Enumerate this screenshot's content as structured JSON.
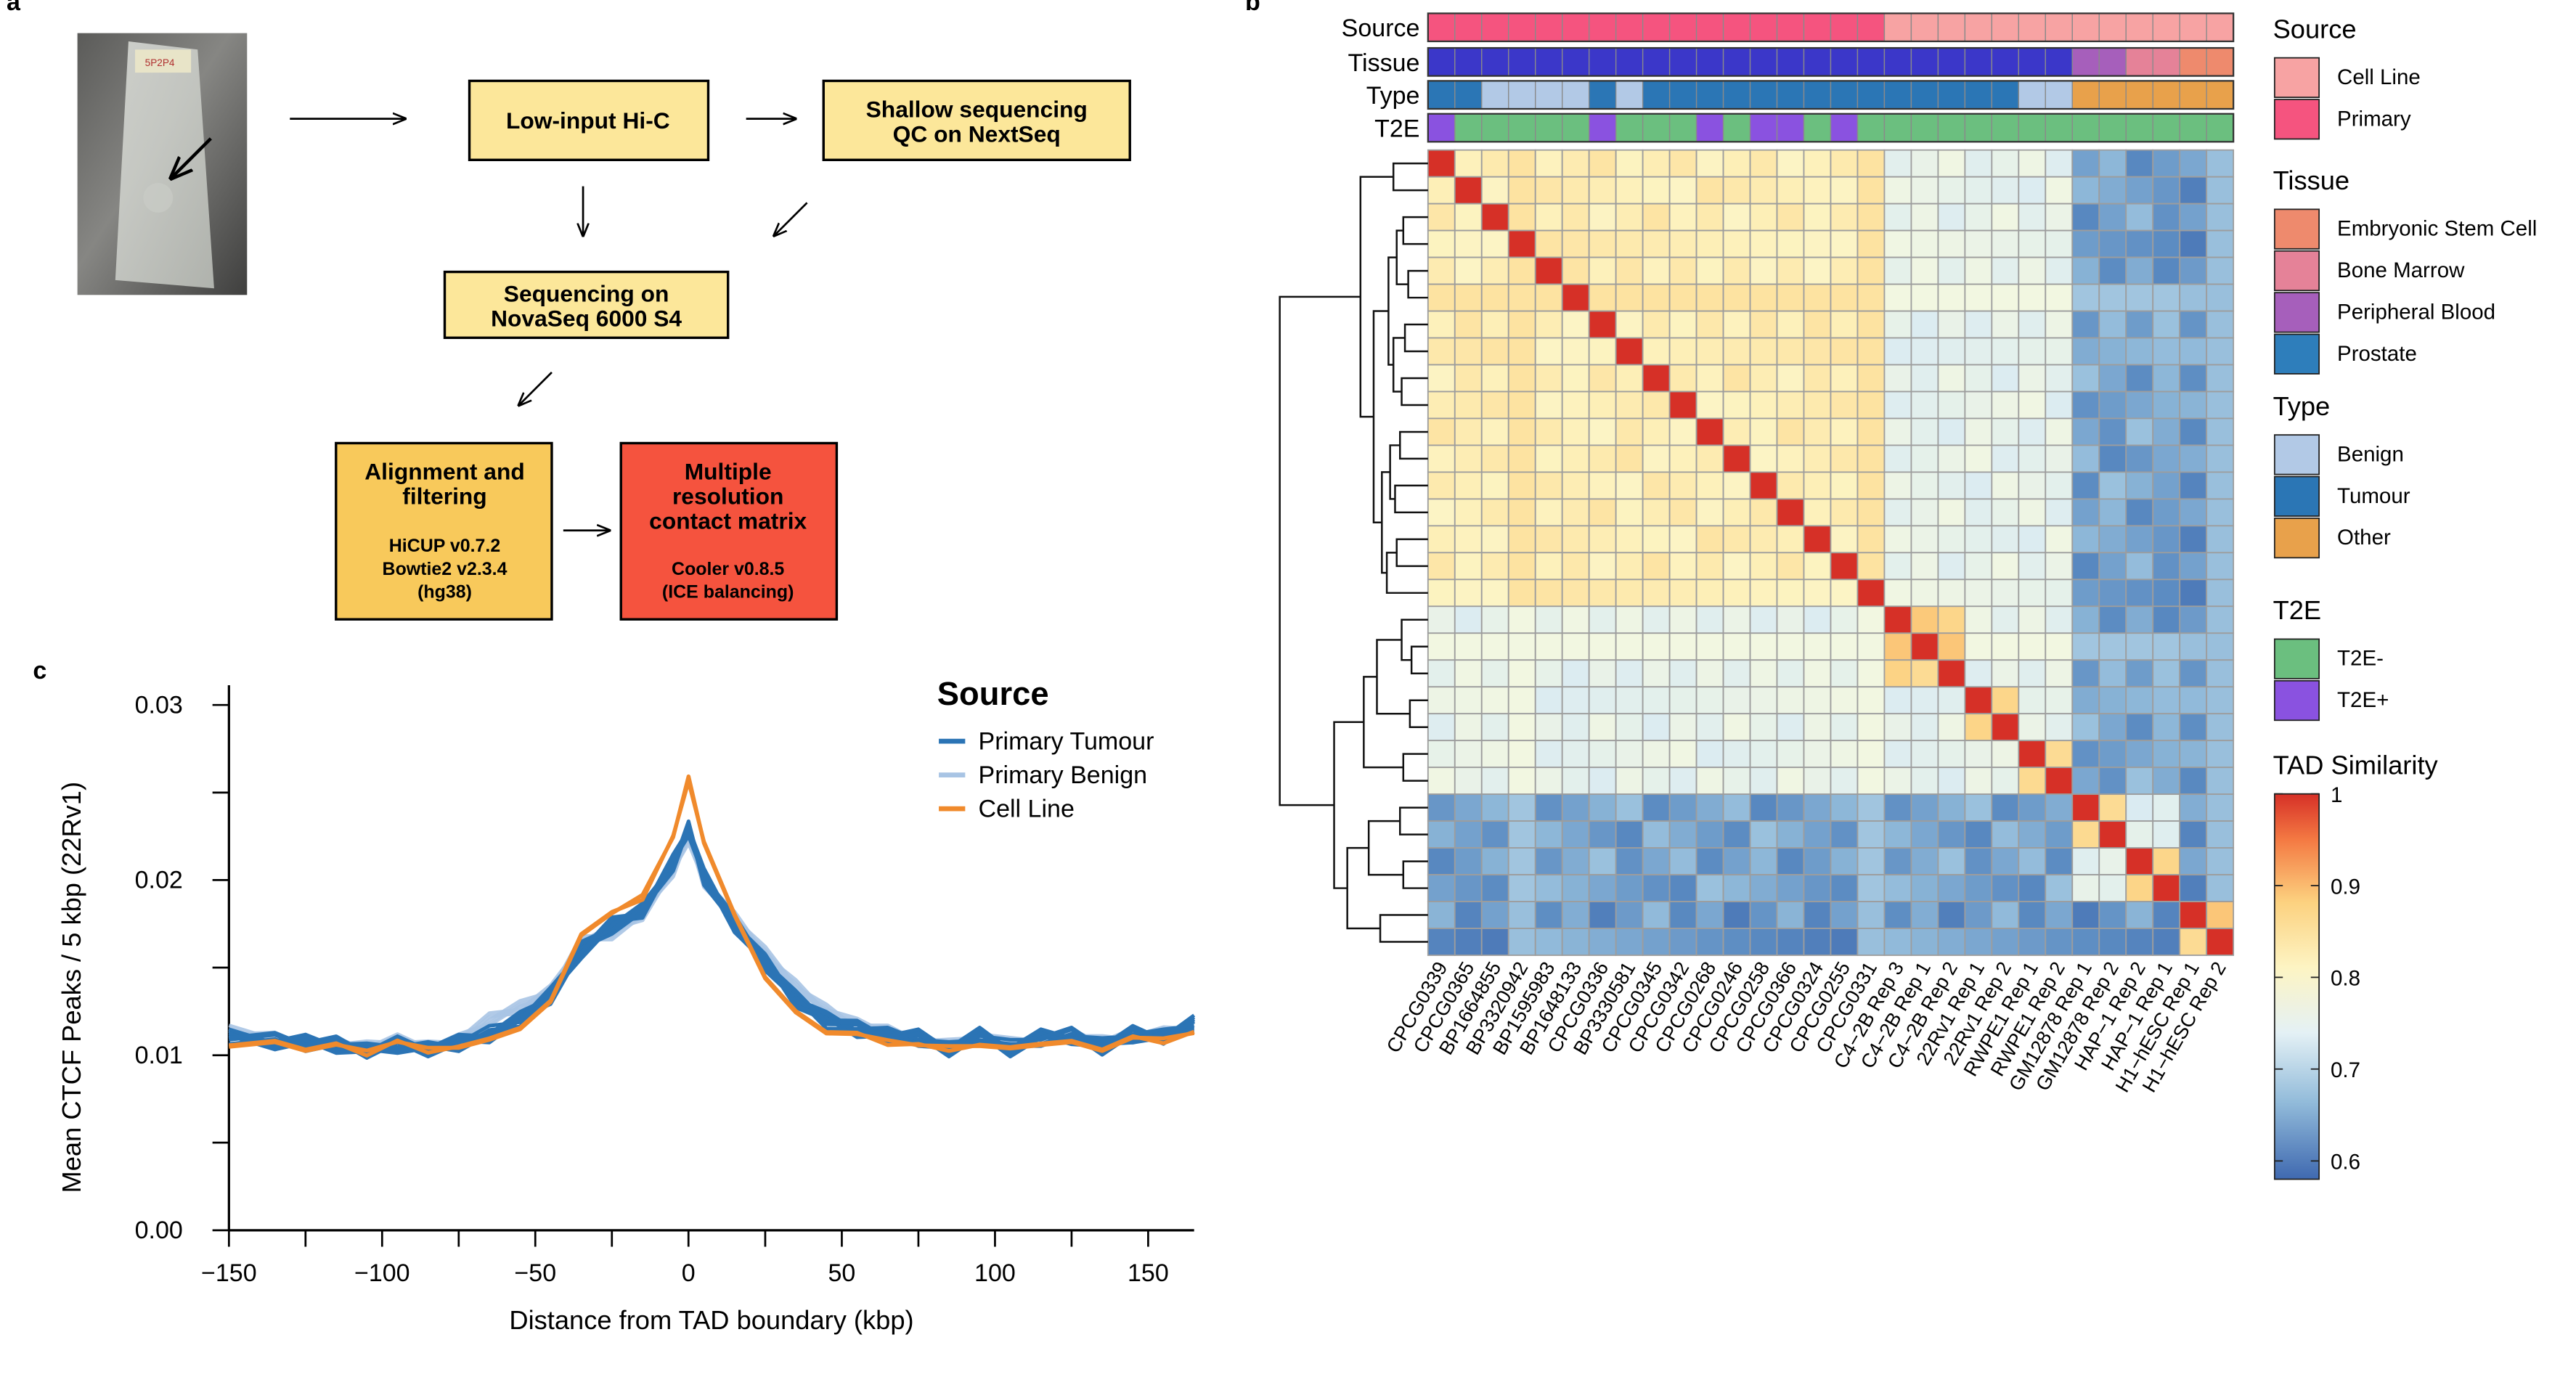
{
  "panels": {
    "a": "a",
    "b": "b",
    "c": "c"
  },
  "flowchart": {
    "sample_label": "5P2P4",
    "hic": "Low-input Hi-C",
    "shallow_l1": "Shallow sequencing",
    "shallow_l2": "QC on NextSeq",
    "novaseq_l1": "Sequencing on",
    "novaseq_l2": "NovaSeq 6000 S4",
    "align_l1": "Alignment and",
    "align_l2": "filtering",
    "align_d1": "HiCUP v0.7.2",
    "align_d2": "Bowtie2 v2.3.4",
    "align_d3": "(hg38)",
    "matrix_l1": "Multiple",
    "matrix_l2": "resolution",
    "matrix_l3": "contact matrix",
    "matrix_d1": "Cooler v0.8.5",
    "matrix_d2": "(ICE balancing)"
  },
  "heatmap": {
    "samples": [
      "CPCG0339",
      "CPCG0365",
      "BP1664855",
      "BP3320942",
      "BP1595983",
      "BP1648133",
      "CPCG0336",
      "BP3330581",
      "CPCG0345",
      "CPCG0342",
      "CPCG0268",
      "CPCG0246",
      "CPCG0258",
      "CPCG0366",
      "CPCG0324",
      "CPCG0255",
      "CPCG0331",
      "C4−2B Rep 3",
      "C4−2B Rep 1",
      "C4−2B Rep 2",
      "22Rv1 Rep 1",
      "22Rv1 Rep 2",
      "RWPE1 Rep 1",
      "RWPE1 Rep 2",
      "GM12878 Rep 1",
      "GM12878 Rep 2",
      "HAP−1 Rep 2",
      "HAP−1 Rep 1",
      "H1−hESC Rep 1",
      "H1−hESC Rep 2"
    ],
    "annotation_rows": [
      "Source",
      "Tissue",
      "Type",
      "T2E"
    ],
    "source": [
      "P",
      "P",
      "P",
      "P",
      "P",
      "P",
      "P",
      "P",
      "P",
      "P",
      "P",
      "P",
      "P",
      "P",
      "P",
      "P",
      "P",
      "C",
      "C",
      "C",
      "C",
      "C",
      "C",
      "C",
      "C",
      "C",
      "C",
      "C",
      "C",
      "C"
    ],
    "tissue": [
      "Pr",
      "Pr",
      "Pr",
      "Pr",
      "Pr",
      "Pr",
      "Pr",
      "Pr",
      "Pr",
      "Pr",
      "Pr",
      "Pr",
      "Pr",
      "Pr",
      "Pr",
      "Pr",
      "Pr",
      "Pr",
      "Pr",
      "Pr",
      "Pr",
      "Pr",
      "Pr",
      "Pr",
      "PB",
      "PB",
      "BM",
      "BM",
      "ES",
      "ES"
    ],
    "type": [
      "T",
      "T",
      "B",
      "B",
      "B",
      "B",
      "T",
      "B",
      "T",
      "T",
      "T",
      "T",
      "T",
      "T",
      "T",
      "T",
      "T",
      "T",
      "T",
      "T",
      "T",
      "T",
      "B",
      "B",
      "O",
      "O",
      "O",
      "O",
      "O",
      "O"
    ],
    "t2e": [
      "+",
      "-",
      "-",
      "-",
      "-",
      "-",
      "+",
      "-",
      "-",
      "-",
      "+",
      "-",
      "+",
      "+",
      "-",
      "+",
      "-",
      "-",
      "-",
      "-",
      "-",
      "-",
      "-",
      "-",
      "-",
      "-",
      "-",
      "-",
      "-",
      "-"
    ],
    "legends": {
      "source_title": "Source",
      "source_items": [
        {
          "label": "Cell Line",
          "color": "#f7a3a3"
        },
        {
          "label": "Primary",
          "color": "#f5547f"
        }
      ],
      "tissue_title": "Tissue",
      "tissue_items": [
        {
          "label": "Embryonic Stem Cell",
          "color": "#ee8a6d"
        },
        {
          "label": "Bone Marrow",
          "color": "#e58298"
        },
        {
          "label": "Peripheral Blood",
          "color": "#a65fbb"
        },
        {
          "label": "Prostate",
          "color": "#2e7ebb"
        }
      ],
      "type_title": "Type",
      "type_items": [
        {
          "label": "Benign",
          "color": "#b2c9e6"
        },
        {
          "label": "Tumour",
          "color": "#2b76b5"
        },
        {
          "label": "Other",
          "color": "#e8a14b"
        }
      ],
      "t2e_title": "T2E",
      "t2e_items": [
        {
          "label": "T2E-",
          "color": "#6bbf7f"
        },
        {
          "label": "T2E+",
          "color": "#8a52e0"
        }
      ],
      "similarity_title": "TAD Similarity",
      "similarity_ticks": [
        "1",
        "0.9",
        "0.8",
        "0.7",
        "0.6"
      ]
    }
  },
  "chart_data": {
    "type": "line",
    "ylabel": "Mean CTCF Peaks / 5 kbp (22Rv1)",
    "xlabel": "Distance from TAD boundary (kbp)",
    "xlim": [
      -150,
      165
    ],
    "ylim": [
      0,
      0.03
    ],
    "xticks": [
      -150,
      -100,
      -50,
      0,
      50,
      100,
      150
    ],
    "xtick_labels": [
      "−150",
      "−100",
      "−50",
      "0",
      "50",
      "100",
      "150"
    ],
    "yticks": [
      0,
      0.01,
      0.02,
      0.03
    ],
    "ytick_labels": [
      "0.00",
      "0.01",
      "0.02",
      "0.03"
    ],
    "legend_title": "Source",
    "legend_position": "top-right",
    "series": [
      {
        "name": "Primary Tumour",
        "color": "#2b74b5"
      },
      {
        "name": "Primary Benign",
        "color": "#a8c4e4"
      },
      {
        "name": "Cell Line",
        "color": "#f08a2c"
      }
    ],
    "profile": {
      "x": [
        -150,
        -135,
        -125,
        -115,
        -105,
        -95,
        -85,
        -75,
        -65,
        -55,
        -45,
        -35,
        -25,
        -15,
        -5,
        0,
        5,
        15,
        25,
        35,
        45,
        55,
        65,
        75,
        85,
        95,
        105,
        115,
        125,
        135,
        145,
        155,
        165
      ],
      "tumour": [
        0.011,
        0.0108,
        0.0107,
        0.0106,
        0.0102,
        0.0106,
        0.0104,
        0.0107,
        0.0112,
        0.012,
        0.0134,
        0.016,
        0.0174,
        0.0182,
        0.021,
        0.023,
        0.0202,
        0.0175,
        0.0153,
        0.0132,
        0.012,
        0.0115,
        0.0111,
        0.011,
        0.0104,
        0.0111,
        0.0104,
        0.011,
        0.0111,
        0.0105,
        0.0112,
        0.011,
        0.0118
      ],
      "benign": [
        0.0113,
        0.011,
        0.0107,
        0.0106,
        0.0104,
        0.0108,
        0.0105,
        0.0109,
        0.012,
        0.0127,
        0.0137,
        0.0165,
        0.017,
        0.018,
        0.0205,
        0.0225,
        0.02,
        0.0178,
        0.0158,
        0.014,
        0.0126,
        0.0117,
        0.0113,
        0.0109,
        0.0106,
        0.0112,
        0.0106,
        0.0109,
        0.0112,
        0.0108,
        0.0111,
        0.0112,
        0.0116
      ],
      "cellline": [
        0.0106,
        0.0107,
        0.0104,
        0.0106,
        0.0101,
        0.0108,
        0.0103,
        0.0105,
        0.0108,
        0.0116,
        0.013,
        0.017,
        0.0181,
        0.019,
        0.0225,
        0.0258,
        0.0222,
        0.0179,
        0.0145,
        0.0124,
        0.0114,
        0.0112,
        0.0107,
        0.0106,
        0.0104,
        0.0106,
        0.0103,
        0.0107,
        0.0107,
        0.0104,
        0.011,
        0.0108,
        0.0113
      ]
    }
  }
}
